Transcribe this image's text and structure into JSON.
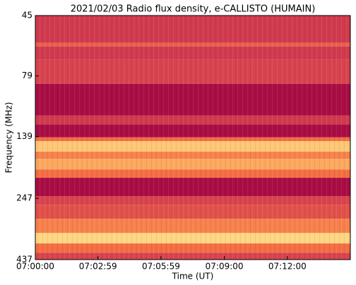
{
  "chart_data": {
    "type": "spectrogram",
    "title": "2021/02/03  Radio flux density, e-CALLISTO (HUMAIN)",
    "xlabel": "Time (UT)",
    "ylabel": "Frequency (MHz)",
    "xlim": [
      0,
      900
    ],
    "xticks": [
      {
        "value": 0,
        "label": "07:00:00"
      },
      {
        "value": 179,
        "label": "07:02:59"
      },
      {
        "value": 359,
        "label": "07:05:59"
      },
      {
        "value": 540,
        "label": "07:09:00"
      },
      {
        "value": 720,
        "label": "07:12:00"
      }
    ],
    "ylim": [
      45,
      437
    ],
    "ylog": true,
    "yinverted": true,
    "yticks": [
      45,
      79,
      139,
      247,
      437
    ],
    "band_edges": [
      45,
      58,
      60,
      68,
      85,
      114,
      124,
      140,
      145,
      160,
      171,
      189,
      204,
      242,
      262,
      299,
      341,
      376,
      410,
      437
    ],
    "levels": [
      0.3,
      0.45,
      0.3,
      0.35,
      0.05,
      0.3,
      0.05,
      0.5,
      0.75,
      0.55,
      0.65,
      0.5,
      0.05,
      0.35,
      0.4,
      0.55,
      0.8,
      0.5,
      0.35
    ],
    "colormap": [
      "#9e0142",
      "#c2294a",
      "#d53e4f",
      "#f46d43",
      "#fdae61",
      "#fee08b",
      "#ffffbf"
    ]
  }
}
